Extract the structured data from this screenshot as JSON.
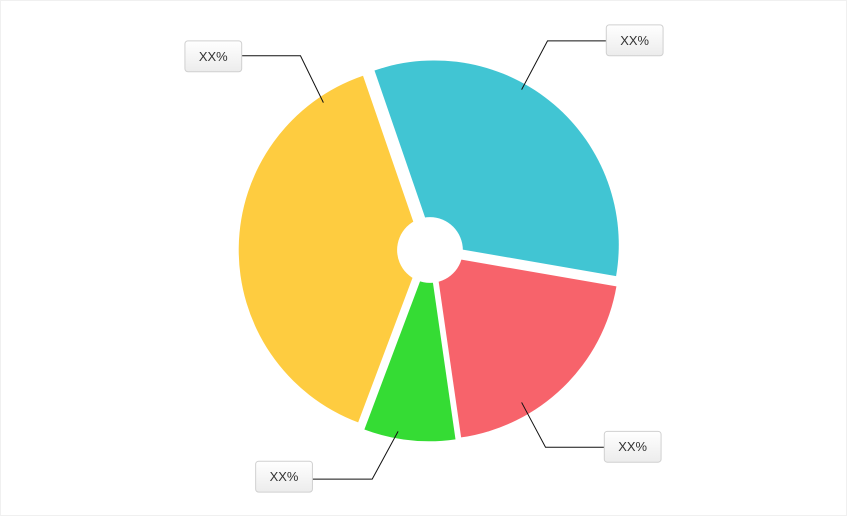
{
  "chart_data": {
    "type": "pie",
    "title": "",
    "donut": true,
    "exploded": true,
    "start_angle_deg": -19,
    "slices": [
      {
        "value": 33,
        "label": "XX%",
        "color": "#41C5D3"
      },
      {
        "value": 20,
        "label": "XX%",
        "color": "#F7636B"
      },
      {
        "value": 8,
        "label": "XX%",
        "color": "#35DC34"
      },
      {
        "value": 39,
        "label": "XX%",
        "color": "#FECC40"
      }
    ]
  }
}
